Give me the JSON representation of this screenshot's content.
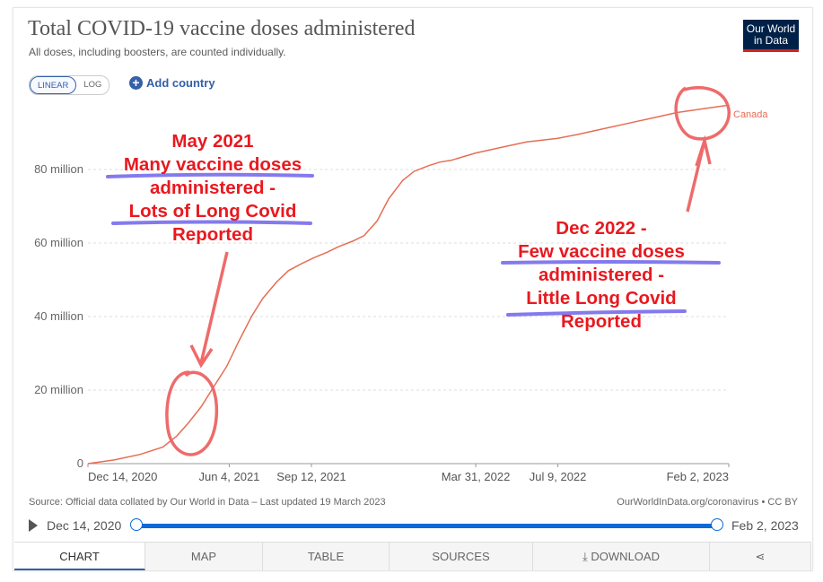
{
  "header": {
    "title": "Total COVID-19 vaccine doses administered",
    "subtitle": "All doses, including boosters, are counted individually.",
    "logo_line1": "Our World",
    "logo_line2": "in Data"
  },
  "controls": {
    "linear_label": "LINEAR",
    "log_label": "LOG",
    "add_country_label": "Add country"
  },
  "chart_data": {
    "type": "line",
    "title": "Total COVID-19 vaccine doses administered",
    "subtitle": "All doses, including boosters, are counted individually.",
    "xlabel": "",
    "ylabel": "",
    "y_tick_labels": [
      "0",
      "20 million",
      "40 million",
      "60 million",
      "80 million"
    ],
    "x_tick_labels": [
      "Dec 14, 2020",
      "Jun 4, 2021",
      "Sep 12, 2021",
      "Mar 31, 2022",
      "Jul 9, 2022",
      "Feb 2, 2023"
    ],
    "ylim": [
      0,
      98
    ],
    "grid": true,
    "series": [
      {
        "name": "Canada",
        "color": "#e66e53",
        "x": [
          "2020-12-14",
          "2021-01-15",
          "2021-02-15",
          "2021-03-15",
          "2021-04-01",
          "2021-04-15",
          "2021-05-01",
          "2021-05-15",
          "2021-06-01",
          "2021-06-15",
          "2021-07-01",
          "2021-07-15",
          "2021-08-01",
          "2021-08-15",
          "2021-09-01",
          "2021-09-15",
          "2021-10-01",
          "2021-10-15",
          "2021-11-01",
          "2021-11-15",
          "2021-12-01",
          "2021-12-15",
          "2022-01-01",
          "2022-01-15",
          "2022-02-01",
          "2022-02-15",
          "2022-03-01",
          "2022-03-31",
          "2022-05-01",
          "2022-06-01",
          "2022-07-09",
          "2022-08-01",
          "2022-09-01",
          "2022-10-01",
          "2022-11-01",
          "2022-12-01",
          "2023-01-01",
          "2023-02-02"
        ],
        "values": [
          0,
          1,
          2.5,
          4.5,
          7.5,
          11,
          15.5,
          20.5,
          26.5,
          33,
          40,
          45,
          49.5,
          52.5,
          54.5,
          56,
          57.5,
          59,
          60.5,
          62,
          66,
          72,
          77,
          79.5,
          81,
          82,
          82.5,
          84.5,
          86,
          87.5,
          88.5,
          89.5,
          91,
          92.5,
          94,
          95.5,
          96.5,
          97.5
        ]
      }
    ],
    "line_label": "Canada"
  },
  "annotations": {
    "left": [
      "May 2021",
      "Many vaccine doses",
      "administered -",
      "Lots of Long Covid",
      "Reported"
    ],
    "right": [
      "Dec 2022 -",
      "Few vaccine doses",
      "administered -",
      "Little Long Covid",
      "Reported"
    ],
    "ink_color": "#e8191f",
    "underline_color": "#5b4ee8"
  },
  "footer": {
    "source": "Source: Official data collated by Our World in Data – Last updated 19 March 2023",
    "link": "OurWorldInData.org/coronavirus • CC BY"
  },
  "timeline": {
    "start_label": "Dec 14, 2020",
    "end_label": "Feb 2, 2023"
  },
  "tabs": [
    "CHART",
    "MAP",
    "TABLE",
    "SOURCES",
    "DOWNLOAD",
    ""
  ]
}
